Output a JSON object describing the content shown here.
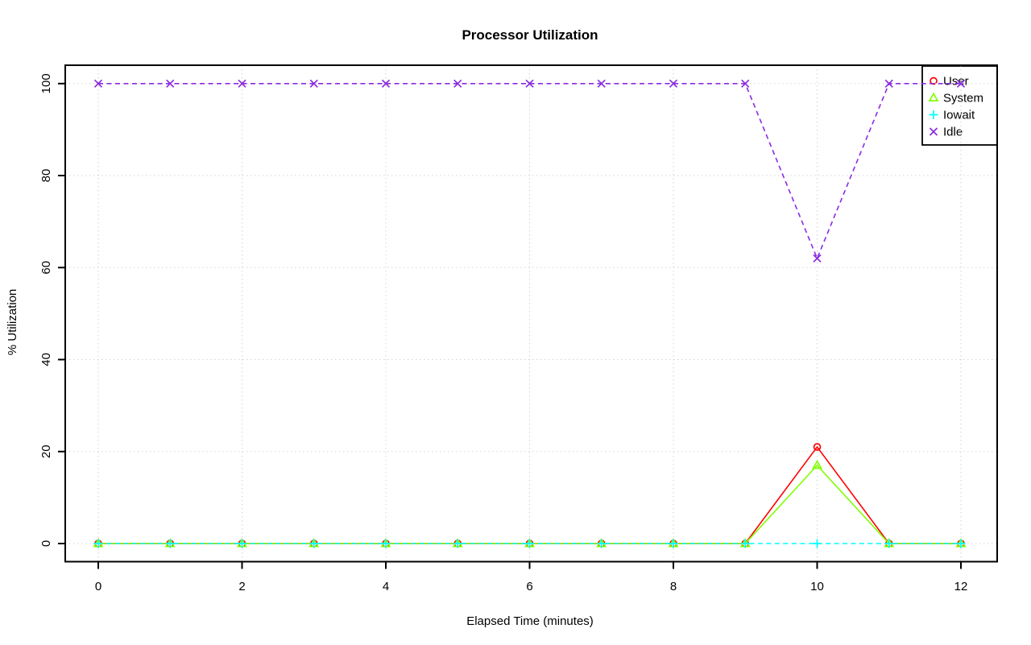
{
  "chart_data": {
    "type": "line",
    "title": "Processor Utilization",
    "xlabel": "Elapsed Time (minutes)",
    "ylabel": "% Utilization",
    "x": [
      0,
      1,
      2,
      3,
      4,
      5,
      6,
      7,
      8,
      9,
      10,
      11,
      12
    ],
    "series": [
      {
        "name": "User",
        "color": "#ff0000",
        "marker": "circle",
        "linestyle": "solid",
        "values": [
          0,
          0,
          0,
          0,
          0,
          0,
          0,
          0,
          0,
          0,
          21,
          0,
          0
        ]
      },
      {
        "name": "System",
        "color": "#80ff00",
        "marker": "triangle",
        "linestyle": "solid",
        "values": [
          0,
          0,
          0,
          0,
          0,
          0,
          0,
          0,
          0,
          0,
          17,
          0,
          0
        ]
      },
      {
        "name": "Iowait",
        "color": "#00ffff",
        "marker": "plus",
        "linestyle": "dashed",
        "values": [
          0,
          0,
          0,
          0,
          0,
          0,
          0,
          0,
          0,
          0,
          0,
          0,
          0
        ]
      },
      {
        "name": "Idle",
        "color": "#8a2be2",
        "marker": "x",
        "linestyle": "dashed",
        "values": [
          100,
          100,
          100,
          100,
          100,
          100,
          100,
          100,
          100,
          100,
          62,
          100,
          100
        ]
      }
    ],
    "xticks": [
      0,
      2,
      4,
      6,
      8,
      10,
      12
    ],
    "yticks": [
      0,
      20,
      40,
      60,
      80,
      100
    ],
    "xlim": [
      0,
      12
    ],
    "ylim": [
      0,
      100
    ],
    "grid": "dotted light-gray at labeled ticks",
    "grid_color": "#d3d3d3",
    "legend_position": "topright",
    "legend_items": [
      "User",
      "System",
      "Iowait",
      "Idle"
    ]
  }
}
